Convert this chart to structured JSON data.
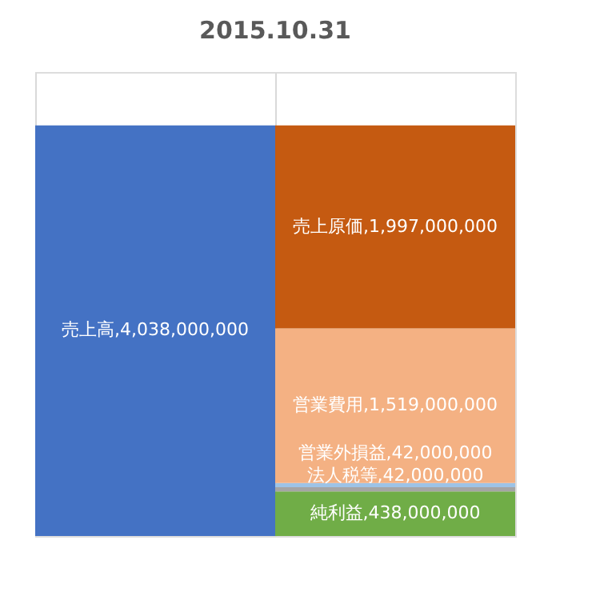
{
  "chart_data": {
    "type": "bar",
    "title": "2015.10.31",
    "categories": [
      null,
      null
    ],
    "stacked": true,
    "grid": "x",
    "tick_labels": false,
    "legend": false,
    "series": [
      {
        "color": "#4472c4",
        "values": [
          4038000000,
          null
        ],
        "value_labels": [
          "売上高,4,038,000,000",
          null
        ]
      },
      {
        "color": "#70ad47",
        "values": [
          null,
          438000000
        ],
        "value_labels": [
          null,
          "純利益,438,000,000"
        ]
      },
      {
        "color": "#a5a5a5",
        "values": [
          null,
          42000000
        ],
        "value_labels": [
          null,
          "法人税等,42,000,000"
        ]
      },
      {
        "color": "#9dc3e6",
        "values": [
          null,
          42000000
        ],
        "value_labels": [
          null,
          "営業外損益,42,000,000"
        ]
      },
      {
        "color": "#f4b183",
        "values": [
          null,
          1519000000
        ],
        "value_labels": [
          null,
          "営業費用,1,519,000,000"
        ]
      },
      {
        "color": "#c55a11",
        "values": [
          null,
          1997000000
        ],
        "value_labels": [
          null,
          "売上原価,1,997,000,000"
        ]
      }
    ]
  }
}
